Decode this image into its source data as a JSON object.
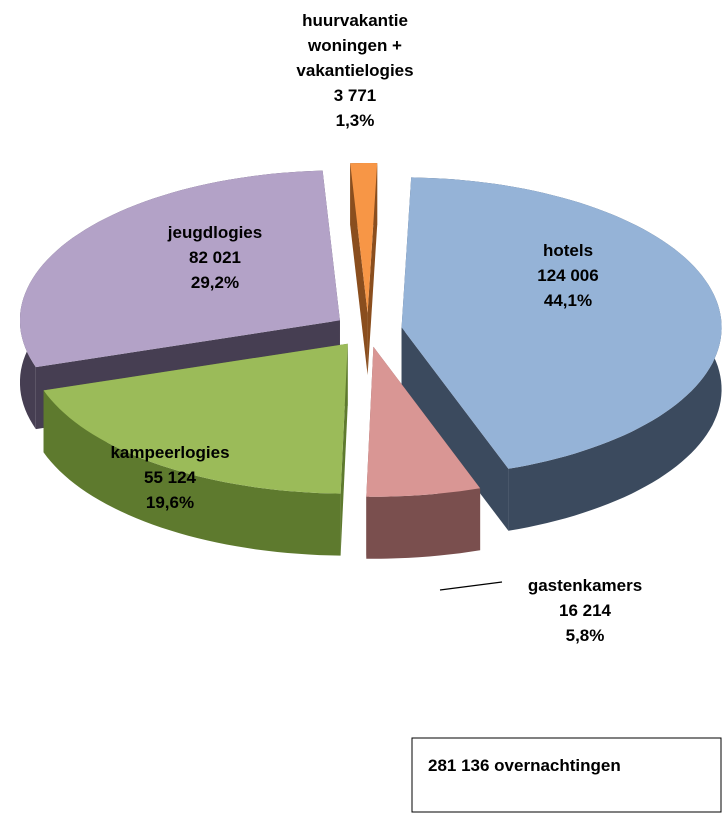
{
  "chart_data": {
    "type": "pie3d",
    "categories": [
      "hotels",
      "gastenkamers",
      "kampeerlogies",
      "jeugdlogies",
      "huurvakantie woningen + vakantielogies"
    ],
    "values": [
      124006,
      16214,
      55124,
      82021,
      3771
    ],
    "value_labels": [
      "124 006",
      "16 214",
      "55 124",
      "82 021",
      "3 771"
    ],
    "percentages": [
      44.1,
      5.8,
      19.6,
      29.2,
      1.3
    ],
    "percentage_labels": [
      "44,1%",
      "5,8%",
      "19,6%",
      "29,2%",
      "1,3%"
    ],
    "colors": [
      "#95b3d7",
      "#d99694",
      "#9bbb59",
      "#b3a2c7",
      "#f79646"
    ],
    "side_colors": [
      "#3b4a5e",
      "#7a4f4e",
      "#5e7a2e",
      "#463e52",
      "#8a4e1e"
    ],
    "total_label": "281 136 overnachtingen"
  }
}
